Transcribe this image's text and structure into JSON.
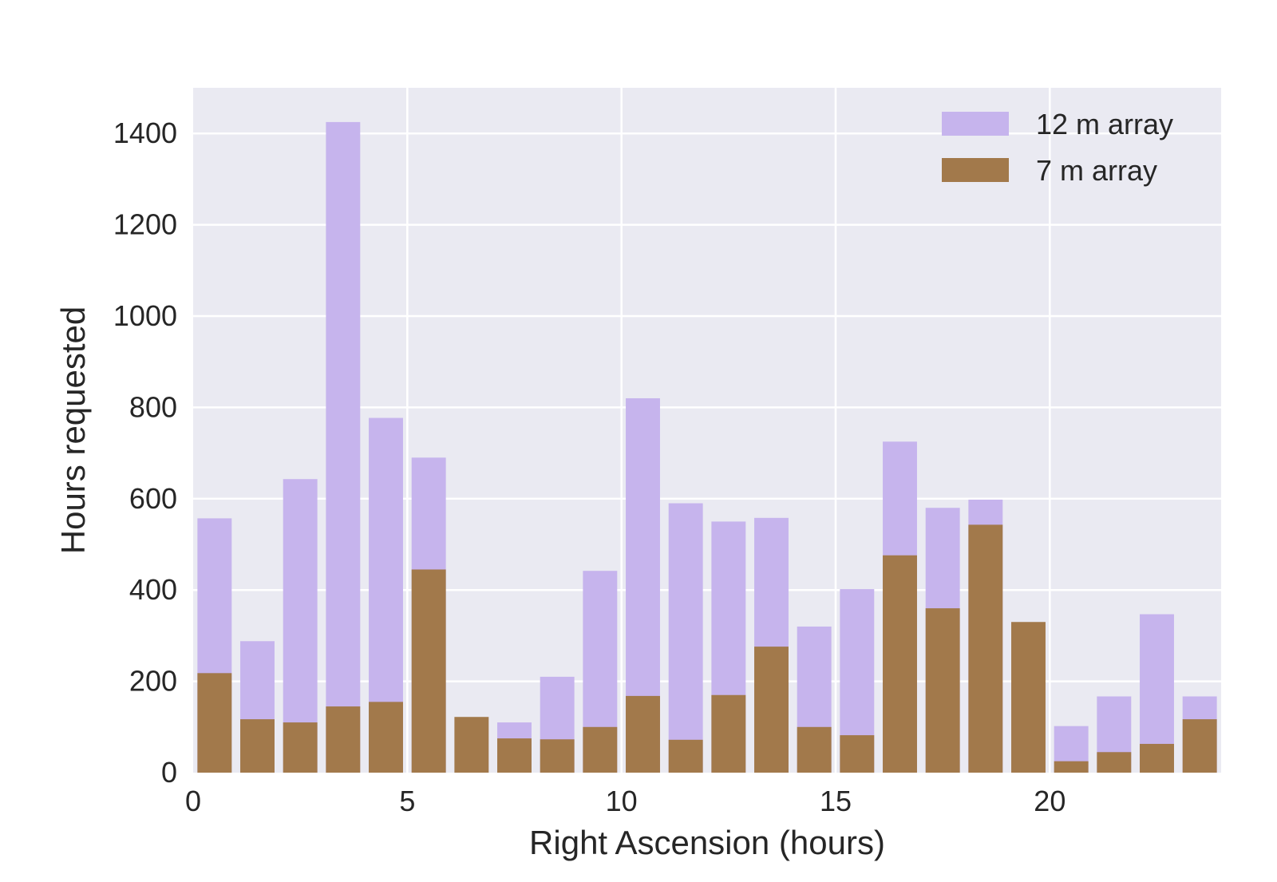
{
  "chart_data": {
    "type": "bar",
    "title": "",
    "xlabel": "Right Ascension  (hours)",
    "ylabel": "Hours requested",
    "xlim": [
      0,
      24
    ],
    "ylim": [
      0,
      1500
    ],
    "xticks": [
      0,
      5,
      10,
      15,
      20
    ],
    "yticks": [
      0,
      200,
      400,
      600,
      800,
      1000,
      1200,
      1400
    ],
    "grid": true,
    "overlay": true,
    "bar_width_hours": 0.8,
    "legend_position": "top-right",
    "categories": [
      0.5,
      1.5,
      2.5,
      3.5,
      4.5,
      5.5,
      6.5,
      7.5,
      8.5,
      9.5,
      10.5,
      11.5,
      12.5,
      13.5,
      14.5,
      15.5,
      16.5,
      17.5,
      18.5,
      19.5,
      20.5,
      21.5,
      22.5,
      23.5
    ],
    "series": [
      {
        "name": "12 m array",
        "color": "#c6b4ed",
        "values": [
          557,
          288,
          643,
          1425,
          777,
          690,
          0,
          110,
          210,
          442,
          820,
          590,
          550,
          558,
          320,
          402,
          725,
          580,
          598,
          0,
          102,
          167,
          347,
          167
        ]
      },
      {
        "name": "7 m array",
        "color": "#a2794b",
        "values": [
          218,
          117,
          110,
          145,
          155,
          445,
          122,
          75,
          73,
          100,
          168,
          72,
          170,
          276,
          100,
          82,
          476,
          360,
          543,
          330,
          25,
          45,
          63,
          117
        ]
      }
    ]
  }
}
